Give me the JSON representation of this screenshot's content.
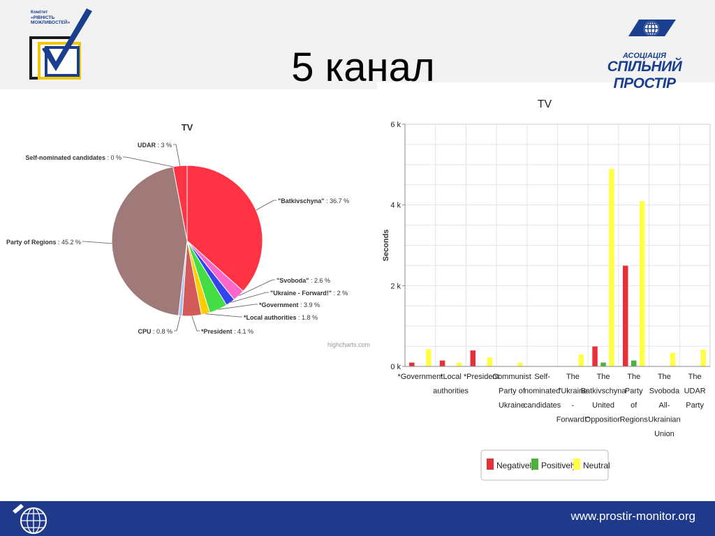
{
  "slide": {
    "title": "5 канал",
    "footer_url": "www.prostir-monitor.org"
  },
  "logos": {
    "left_text": [
      "Комітет",
      "«РІВНІСТЬ",
      "МОЖЛИВОСТЕЙ»"
    ],
    "right_top": "АСОЦІАЦІЯ",
    "right_main": "СПІЛЬНИЙ ПРОСТІР"
  },
  "colors": {
    "footer": "#1f3a8a",
    "brand": "#1b3f8f",
    "negative": "#e8303a",
    "positive": "#4cb33a",
    "neutral": "#ffff44"
  },
  "chart_data": [
    {
      "type": "pie",
      "title": "TV",
      "credit": "highcharts.com",
      "unit_suffix": " %",
      "slices": [
        {
          "name": "\"Batkivschyna\"",
          "value": 36.7,
          "color": "#ff3344"
        },
        {
          "name": "\"Svoboda\"",
          "value": 2.6,
          "color": "#ff66cc"
        },
        {
          "name": "\"Ukraine - Forward!\"",
          "value": 2,
          "color": "#3344ee"
        },
        {
          "name": "*Government",
          "value": 3.9,
          "color": "#44dd44"
        },
        {
          "name": "*Local authorities",
          "value": 1.8,
          "color": "#ffcc00"
        },
        {
          "name": "*President",
          "value": 4.1,
          "color": "#d45a5a"
        },
        {
          "name": "CPU",
          "value": 0.8,
          "color": "#aabbee"
        },
        {
          "name": "Party of Regions",
          "value": 45.2,
          "color": "#a07a78"
        },
        {
          "name": "Self-nominated candidates",
          "value": 0,
          "color": "#888888"
        },
        {
          "name": "UDAR",
          "value": 3,
          "color": "#ff3344"
        }
      ]
    },
    {
      "type": "bar",
      "title": "TV",
      "ylabel": "Seconds",
      "ylim": [
        0,
        6000
      ],
      "yticks": [
        0,
        2000,
        4000,
        6000
      ],
      "ytick_labels": [
        "0 k",
        "2 k",
        "4 k",
        "6 k"
      ],
      "legend": "bottom-center",
      "grid": true,
      "categories": [
        [
          "*Government"
        ],
        [
          "*Local",
          "authorities"
        ],
        [
          "*President"
        ],
        [
          "Communist",
          "Party of",
          "Ukraine"
        ],
        [
          "Self-",
          "nominated",
          "candidates"
        ],
        [
          "The",
          "\"Ukraine",
          "-",
          "Forward!\""
        ],
        [
          "The",
          "Batkivschyna",
          "United",
          "Opposition"
        ],
        [
          "The",
          "Party",
          "of",
          "Regions"
        ],
        [
          "The",
          "Svoboda",
          "All-",
          "Ukrainian",
          "Union"
        ],
        [
          "The",
          "UDAR",
          "Party"
        ]
      ],
      "series": [
        {
          "name": "Negatively",
          "values": [
            100,
            150,
            400,
            0,
            0,
            0,
            500,
            2500,
            0,
            0
          ]
        },
        {
          "name": "Positively",
          "values": [
            0,
            0,
            0,
            0,
            0,
            0,
            100,
            150,
            0,
            0
          ]
        },
        {
          "name": "Neutral",
          "values": [
            430,
            100,
            230,
            100,
            0,
            300,
            4900,
            4100,
            340,
            420
          ]
        }
      ]
    }
  ]
}
